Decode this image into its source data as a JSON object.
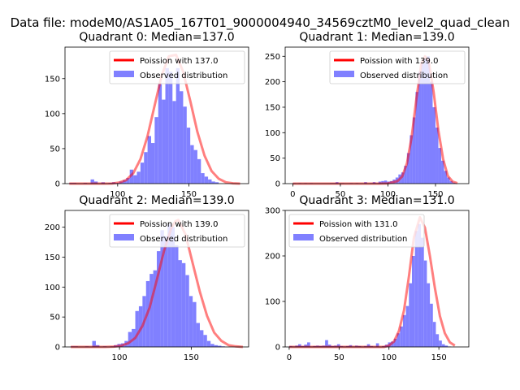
{
  "suptitle": "Data file: modeM0/AS1A05_167T01_9000004940_34569cztM0_level2_quad_clean",
  "colors": {
    "hist": "#8080ff",
    "line": "#ff0000",
    "axes": "#000000"
  },
  "chart_data": [
    {
      "type": "bar+line",
      "title": "Quadrant 0: Median=137.0",
      "xlim": [
        63,
        192
      ],
      "ylim": [
        0,
        195
      ],
      "xticks": [
        100,
        150
      ],
      "yticks": [
        0,
        50,
        100,
        150
      ],
      "legend": {
        "line_label": "Poission with 137.0",
        "hist_label": "Observed distribution",
        "placement": "top-right"
      },
      "poisson_mean": 137.0,
      "hist": {
        "edges": [
          66,
          68.5,
          71,
          73.5,
          76,
          78.5,
          81,
          83.5,
          86,
          88.5,
          91,
          93.5,
          96,
          98.5,
          101,
          103.5,
          106,
          108.5,
          111,
          113.5,
          116,
          118.5,
          121,
          123.5,
          126,
          128.5,
          131,
          133.5,
          136,
          138.5,
          141,
          143.5,
          146,
          148.5,
          151,
          153.5,
          156,
          158.5,
          161,
          163.5,
          166,
          168.5,
          171
        ],
        "counts": [
          1,
          1,
          0,
          0,
          1,
          0,
          6,
          3,
          0,
          2,
          0,
          1,
          2,
          1,
          3,
          5,
          8,
          20,
          12,
          17,
          30,
          45,
          68,
          58,
          95,
          142,
          120,
          165,
          160,
          118,
          165,
          132,
          110,
          80,
          55,
          48,
          35,
          15,
          10,
          6,
          3,
          2
        ]
      },
      "line": {
        "x": [
          66,
          76,
          86,
          96,
          101,
          106,
          111,
          116,
          121,
          126,
          131,
          136,
          141,
          146,
          151,
          156,
          161,
          166,
          171,
          176,
          181,
          186
        ],
        "y": [
          0,
          0,
          0,
          0.1,
          1.5,
          5,
          15,
          35,
          68,
          112,
          155,
          182,
          184,
          160,
          118,
          74,
          40,
          18,
          7,
          2,
          0.5,
          0
        ]
      }
    },
    {
      "type": "bar+line",
      "title": "Quadrant 1: Median=139.0",
      "xlim": [
        -8,
        185
      ],
      "ylim": [
        0,
        268
      ],
      "xticks": [
        0,
        50,
        100,
        150
      ],
      "yticks": [
        0,
        50,
        100,
        150,
        200,
        250
      ],
      "legend": {
        "line_label": "Poission with 139.0",
        "hist_label": "Observed distribution",
        "placement": "top-right"
      },
      "poisson_mean": 139.0,
      "hist": {
        "edges": [
          0,
          3,
          6,
          9,
          12,
          15,
          18,
          21,
          24,
          27,
          30,
          33,
          36,
          39,
          42,
          45,
          48,
          51,
          54,
          57,
          60,
          63,
          66,
          69,
          72,
          75,
          78,
          81,
          84,
          87,
          90,
          93,
          96,
          99,
          102,
          105,
          108,
          111,
          114,
          117,
          120,
          123,
          126,
          129,
          132,
          135,
          138,
          141,
          144,
          147,
          150,
          153,
          156,
          159,
          162,
          165,
          168,
          171
        ],
        "counts": [
          1,
          0,
          1,
          0,
          1,
          0,
          1,
          0,
          0,
          0,
          0,
          0,
          0,
          1,
          1,
          3,
          0,
          1,
          0,
          0,
          1,
          0,
          1,
          0,
          0,
          3,
          0,
          1,
          3,
          1,
          4,
          5,
          6,
          4,
          5,
          8,
          12,
          18,
          22,
          35,
          60,
          95,
          130,
          180,
          220,
          235,
          245,
          250,
          200,
          150,
          110,
          70,
          45,
          25,
          12,
          5,
          2
        ]
      },
      "line": {
        "x": [
          0,
          50,
          90,
          100,
          110,
          115,
          120,
          125,
          130,
          135,
          139,
          143,
          148,
          153,
          158,
          163,
          168,
          173
        ],
        "y": [
          0,
          0,
          0,
          0.5,
          5,
          14,
          40,
          92,
          168,
          235,
          250,
          240,
          180,
          105,
          48,
          15,
          4,
          1
        ]
      }
    },
    {
      "type": "bar+line",
      "title": "Quadrant 2: Median=139.0",
      "xlim": [
        62,
        190
      ],
      "ylim": [
        0,
        228
      ],
      "xticks": [
        100,
        150
      ],
      "yticks": [
        0,
        50,
        100,
        150,
        200
      ],
      "legend": {
        "line_label": "Poission with 139.0",
        "hist_label": "Observed distribution",
        "placement": "top-right"
      },
      "poisson_mean": 139.0,
      "hist": {
        "edges": [
          66,
          68.5,
          71,
          73.5,
          76,
          78.5,
          81,
          83.5,
          86,
          88.5,
          91,
          93.5,
          96,
          98.5,
          101,
          103.5,
          106,
          108.5,
          111,
          113.5,
          116,
          118.5,
          121,
          123.5,
          126,
          128.5,
          131,
          133.5,
          136,
          138.5,
          141,
          143.5,
          146,
          148.5,
          151,
          153.5,
          156,
          158.5,
          161,
          163.5,
          166,
          168.5,
          171,
          173.5
        ],
        "counts": [
          1,
          1,
          0,
          0,
          1,
          0,
          10,
          3,
          0,
          1,
          0,
          1,
          3,
          5,
          6,
          10,
          25,
          30,
          60,
          68,
          85,
          110,
          122,
          128,
          160,
          195,
          185,
          205,
          200,
          170,
          145,
          140,
          120,
          85,
          75,
          40,
          28,
          20,
          10,
          5,
          3,
          2,
          1
        ]
      },
      "line": {
        "x": [
          66,
          80,
          90,
          96,
          101,
          106,
          111,
          116,
          121,
          126,
          131,
          136,
          139,
          141,
          146,
          151,
          156,
          161,
          166,
          171,
          176,
          181,
          186
        ],
        "y": [
          0,
          0,
          0,
          0.5,
          2,
          6,
          15,
          35,
          66,
          112,
          160,
          198,
          210,
          212,
          188,
          140,
          92,
          52,
          24,
          10,
          3,
          1,
          0
        ]
      }
    },
    {
      "type": "bar+line",
      "title": "Quadrant 3: Median=131.0",
      "xlim": [
        -4,
        180
      ],
      "ylim": [
        0,
        300
      ],
      "xticks": [
        0,
        50,
        100,
        150
      ],
      "yticks": [
        0,
        100,
        200,
        300
      ],
      "legend": {
        "line_label": "Poission with 131.0",
        "hist_label": "Observed distribution",
        "placement": "top-left"
      },
      "poisson_mean": 131.0,
      "hist": {
        "edges": [
          0,
          3,
          6,
          9,
          12,
          15,
          18,
          21,
          24,
          27,
          30,
          33,
          36,
          39,
          42,
          45,
          48,
          51,
          54,
          57,
          60,
          63,
          66,
          69,
          72,
          75,
          78,
          81,
          84,
          87,
          90,
          93,
          96,
          99,
          102,
          105,
          108,
          111,
          114,
          117,
          120,
          123,
          126,
          129,
          132,
          135,
          138,
          141,
          144,
          147,
          150,
          153,
          156,
          159,
          162,
          165,
          168
        ],
        "counts": [
          2,
          1,
          3,
          6,
          2,
          5,
          10,
          1,
          2,
          3,
          2,
          3,
          15,
          5,
          2,
          3,
          6,
          2,
          1,
          2,
          4,
          1,
          3,
          2,
          1,
          2,
          6,
          2,
          1,
          8,
          0,
          2,
          5,
          10,
          12,
          18,
          30,
          45,
          70,
          90,
          140,
          200,
          255,
          270,
          240,
          190,
          140,
          95,
          55,
          28,
          14,
          6,
          3,
          1,
          0,
          0
        ]
      },
      "line": {
        "x": [
          0,
          50,
          95,
          100,
          105,
          110,
          115,
          120,
          125,
          131,
          136,
          141,
          146,
          151,
          156,
          161,
          166
        ],
        "y": [
          0,
          0,
          0,
          3,
          12,
          35,
          80,
          155,
          240,
          285,
          262,
          200,
          130,
          68,
          30,
          10,
          3
        ]
      }
    }
  ]
}
